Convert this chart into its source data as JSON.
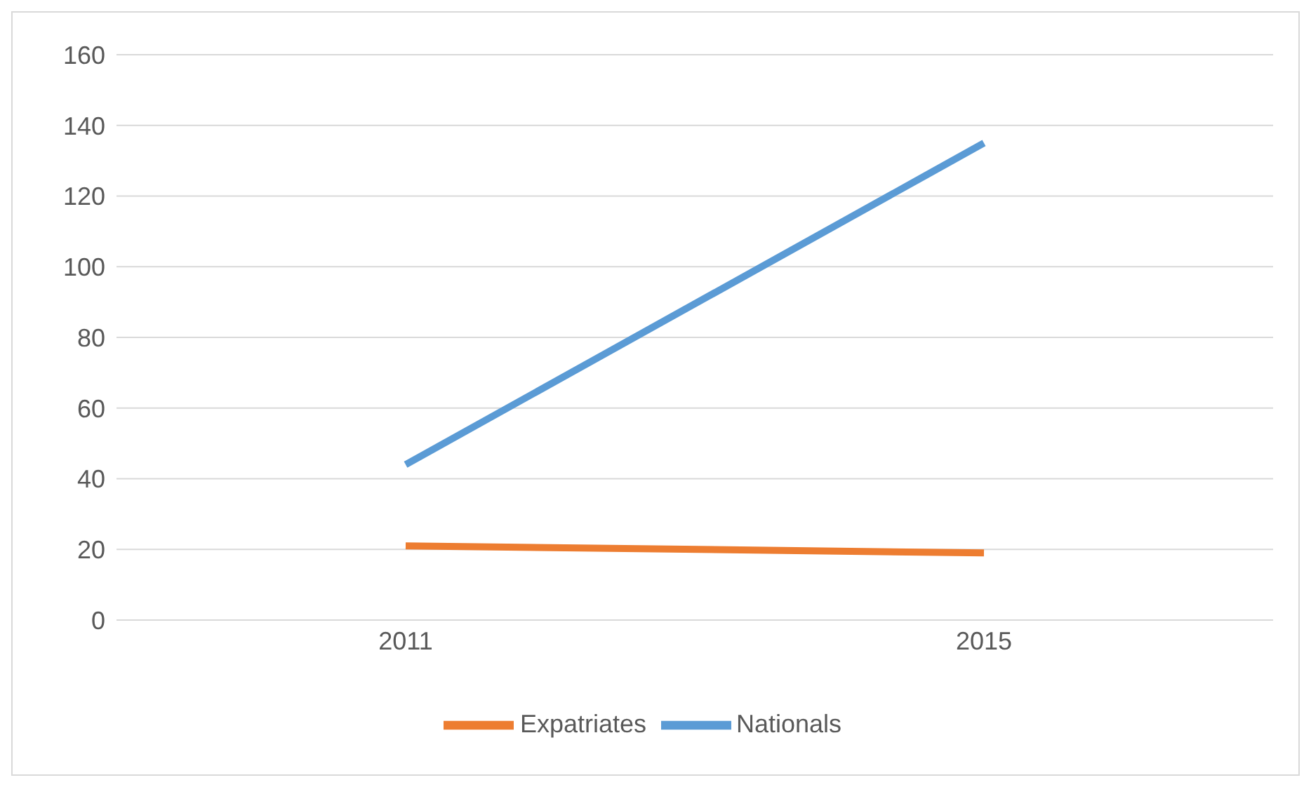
{
  "chart_data": {
    "type": "line",
    "categories": [
      "2011",
      "2015"
    ],
    "series": [
      {
        "name": "Nationals",
        "color": "#5b9bd5",
        "values": [
          44,
          135
        ]
      },
      {
        "name": "Expatriates",
        "color": "#ed7d31",
        "values": [
          21,
          19
        ]
      }
    ],
    "ylim": [
      0,
      160
    ],
    "yticks": [
      0,
      20,
      40,
      60,
      80,
      100,
      120,
      140,
      160
    ],
    "grid": "y",
    "legend": "bottom",
    "marker": "none",
    "line_style": "solid"
  }
}
